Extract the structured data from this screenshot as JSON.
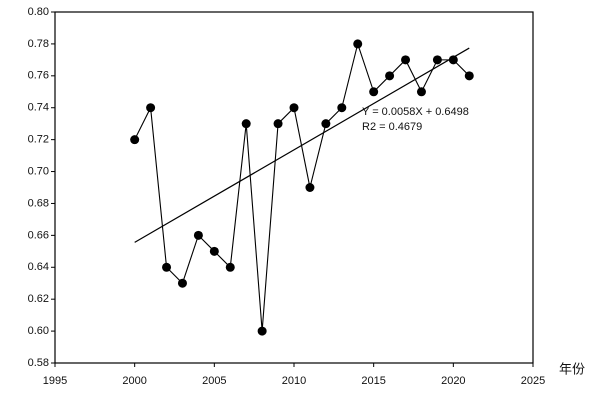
{
  "chart_data": {
    "type": "line",
    "x_label": "年份",
    "x": [
      2000,
      2001,
      2002,
      2003,
      2004,
      2005,
      2006,
      2007,
      2008,
      2009,
      2010,
      2011,
      2012,
      2013,
      2014,
      2015,
      2016,
      2017,
      2018,
      2019,
      2020,
      2021
    ],
    "series": [
      {
        "color": "#000000",
        "values": [
          0.72,
          0.74,
          0.64,
          0.63,
          0.66,
          0.65,
          0.64,
          0.73,
          0.6,
          0.73,
          0.74,
          0.69,
          0.73,
          0.74,
          0.78,
          0.75,
          0.76,
          0.77,
          0.75,
          0.77,
          0.77,
          0.76
        ]
      }
    ],
    "trend": {
      "x": [
        2000,
        2021
      ],
      "values": [
        0.6556,
        0.7774
      ],
      "color": "#000000"
    },
    "annotations": [
      "Y = 0.0058X + 0.6498",
      "R2 = 0.4679"
    ],
    "xlim": [
      1995,
      2025
    ],
    "xticks": [
      1995,
      2000,
      2005,
      2010,
      2015,
      2020,
      2025
    ],
    "ylim": [
      0.58,
      0.8
    ],
    "yticks": [
      0.58,
      {
        "value": 0.6,
        "label": "0.60"
      },
      0.62,
      0.64,
      0.66,
      0.68,
      {
        "value": 0.7,
        "label": "0.70"
      },
      0.72,
      0.74,
      0.76,
      0.78,
      {
        "value": 0.8,
        "label": "0.80"
      }
    ],
    "grid": false
  }
}
